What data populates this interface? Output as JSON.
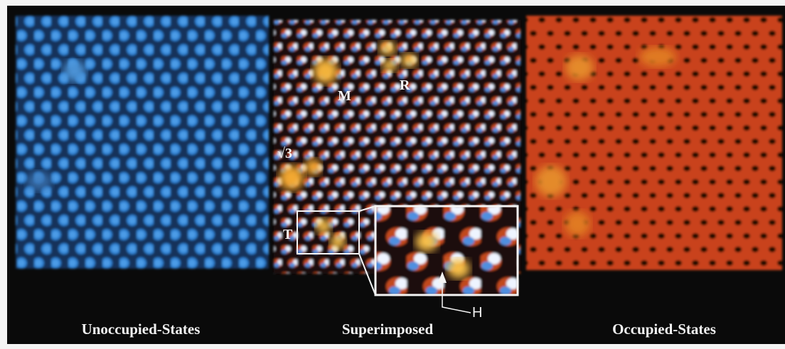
{
  "panels": [
    {
      "caption": "Unoccupied-States"
    },
    {
      "caption": "Superimposed",
      "labels": [
        "M",
        "R",
        "√3",
        "T"
      ],
      "callout": "H"
    },
    {
      "caption": "Occupied-States"
    }
  ]
}
